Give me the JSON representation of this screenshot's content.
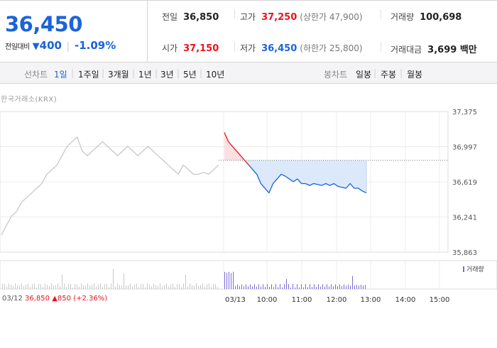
{
  "quote": {
    "current": "36,450",
    "change_label": "전일대비",
    "change_arrow": "▼",
    "change_value": "400",
    "change_rate": "-1.09%"
  },
  "info": {
    "prev_label": "전일",
    "prev_value": "36,850",
    "high_label": "고가",
    "high_value": "37,250",
    "high_sub": "(상한가 47,900)",
    "volume_label": "거래량",
    "volume_value": "100,698",
    "open_label": "시가",
    "open_value": "37,150",
    "low_label": "저가",
    "low_value": "36,450",
    "low_sub": "(하한가 25,800)",
    "amount_label": "거래대금",
    "amount_value": "3,699 백만"
  },
  "tabs": {
    "line_label": "선차트",
    "line_items": [
      "1일",
      "1주일",
      "3개월",
      "1년",
      "3년",
      "5년",
      "10년"
    ],
    "candle_label": "봉차트",
    "candle_items": [
      "일봉",
      "주봉",
      "월봉"
    ]
  },
  "source": "한국거래소(KRX)",
  "legend_volume": "거래량",
  "prev_day": {
    "date": "03/12",
    "price": "36,850",
    "arrow": "▲",
    "change": "850",
    "rate": "(+2.36%)"
  },
  "colors": {
    "up": "#e8141c",
    "down": "#1b63d8",
    "prev_line": "#c8c8c8",
    "fill": "#dce9fb",
    "volume": "#7b6bd6"
  },
  "chart_data": {
    "type": "line",
    "ylim": [
      35863,
      37375
    ],
    "yticks": [
      "37,375",
      "36,997",
      "36,619",
      "36,241",
      "35,863"
    ],
    "xticks": [
      "03/13",
      "10:00",
      "11:00",
      "12:00",
      "13:00",
      "14:00",
      "15:00"
    ],
    "base_price": 36850,
    "series": [
      {
        "name": "03/12",
        "values": [
          36050,
          36150,
          36250,
          36300,
          36400,
          36450,
          36500,
          36550,
          36600,
          36700,
          36750,
          36800,
          36900,
          37000,
          37050,
          37100,
          36950,
          36900,
          36950,
          37000,
          37050,
          37000,
          36950,
          36900,
          36950,
          37000,
          36950,
          36900,
          36950,
          37000,
          36950,
          36900,
          36850,
          36800,
          36750,
          36700,
          36800,
          36750,
          36700,
          36700,
          36720,
          36700,
          36750,
          36800
        ]
      },
      {
        "name": "03/13",
        "values": [
          37150,
          37050,
          37000,
          36950,
          36900,
          36850,
          36800,
          36750,
          36700,
          36600,
          36550,
          36500,
          36600,
          36650,
          36700,
          36680,
          36650,
          36620,
          36650,
          36600,
          36600,
          36580,
          36600,
          36590,
          36580,
          36600,
          36580,
          36600,
          36570,
          36560,
          36550,
          36600,
          36550,
          36550,
          36520,
          36500
        ]
      }
    ]
  }
}
